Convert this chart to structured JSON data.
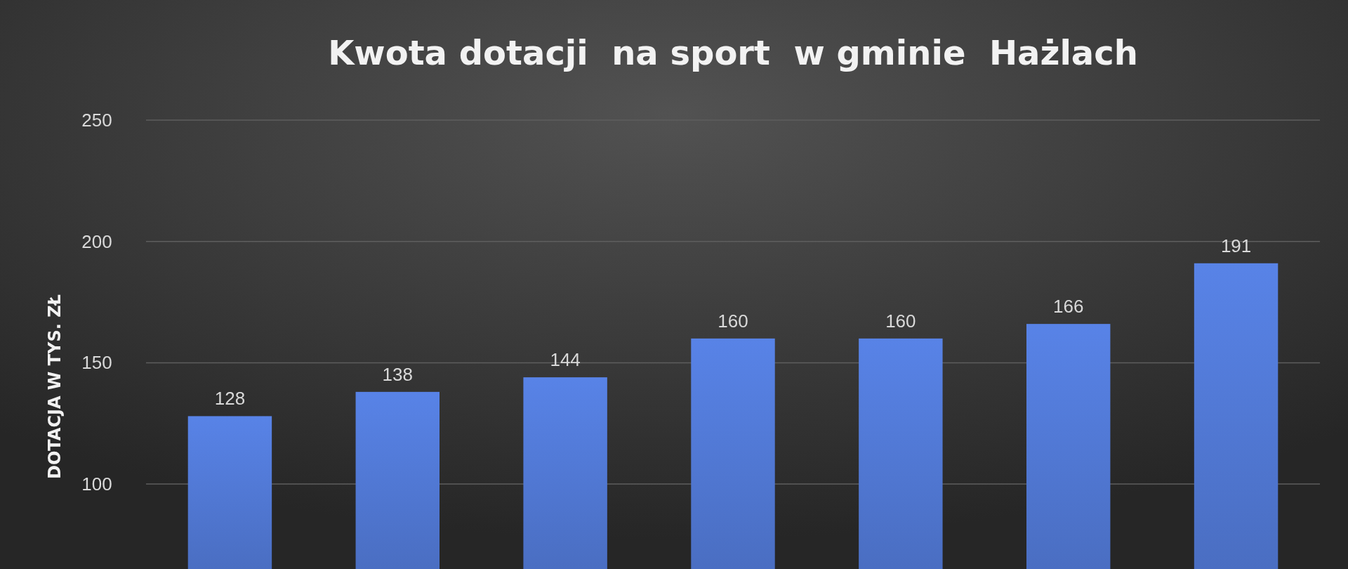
{
  "chart_data": {
    "type": "bar",
    "title": "Kwota dotacji  na sport  w gminie  Hażlach",
    "ylabel": "DOTACJA W TYS. ZŁ",
    "categories": [
      null,
      null,
      null,
      null,
      null,
      null,
      null
    ],
    "values": [
      128,
      138,
      144,
      160,
      160,
      166,
      191
    ],
    "color": "#4f76d0",
    "ylim": [
      65,
      250
    ],
    "yticks": [
      100,
      150,
      200,
      250
    ],
    "grid": "y",
    "data_labels": true
  }
}
